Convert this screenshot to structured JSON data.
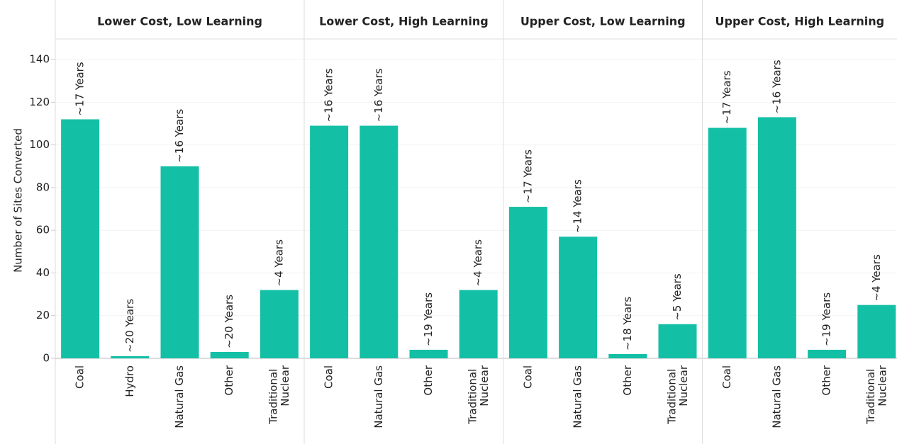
{
  "chart_data": [
    {
      "type": "bar",
      "title": "Lower Cost, Low Learning",
      "y_label": "Number of Sites Converted",
      "categories": [
        "Coal",
        "Hydro",
        "Natural Gas",
        "Other",
        "Traditional Nuclear"
      ],
      "values": [
        112,
        1,
        90,
        3,
        32
      ],
      "value_labels": [
        "~17 Years",
        "~20 Years",
        "~16 Years",
        "~20 Years",
        "~4 Years"
      ],
      "color": "#14c0a5",
      "ylim": [
        0,
        148
      ],
      "yticks": [
        0,
        20,
        40,
        60,
        80,
        100,
        120,
        140
      ],
      "grid": true
    },
    {
      "type": "bar",
      "title": "Lower Cost, High Learning",
      "categories": [
        "Coal",
        "Natural Gas",
        "Other",
        "Traditional Nuclear"
      ],
      "values": [
        109,
        109,
        4,
        32
      ],
      "value_labels": [
        "~16 Years",
        "~16 Years",
        "~19 Years",
        "~4 Years"
      ],
      "color": "#14c0a5",
      "ylim": [
        0,
        148
      ]
    },
    {
      "type": "bar",
      "title": "Upper Cost, Low Learning",
      "categories": [
        "Coal",
        "Natural Gas",
        "Other",
        "Traditional Nuclear"
      ],
      "values": [
        71,
        57,
        2,
        16
      ],
      "value_labels": [
        "~17 Years",
        "~14 Years",
        "~18 Years",
        "~5 Years"
      ],
      "color": "#14c0a5",
      "ylim": [
        0,
        148
      ]
    },
    {
      "type": "bar",
      "title": "Upper Cost, High Learning",
      "categories": [
        "Coal",
        "Natural Gas",
        "Other",
        "Traditional Nuclear"
      ],
      "values": [
        108,
        113,
        4,
        25
      ],
      "value_labels": [
        "~17 Years",
        "~16 Years",
        "~19 Years",
        "~4 Years"
      ],
      "color": "#14c0a5",
      "ylim": [
        0,
        148
      ]
    }
  ]
}
